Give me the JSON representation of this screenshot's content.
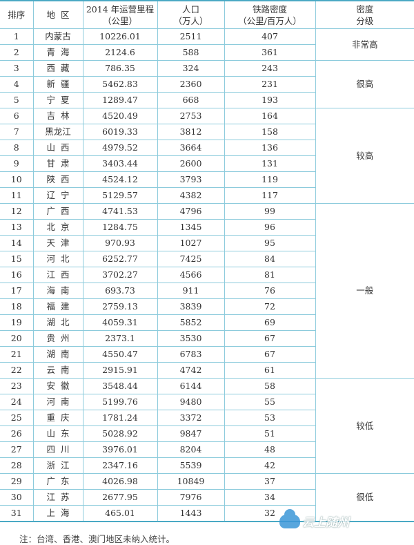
{
  "headers": {
    "rank": "排序",
    "region": "地  区",
    "mileage": [
      "2014 年运营里程",
      "（公里）"
    ],
    "population": [
      "人口",
      "（万人）"
    ],
    "density": [
      "铁路密度",
      "（公里/百万人）"
    ],
    "grade": [
      "密度",
      "分级"
    ]
  },
  "rows": [
    {
      "rank": "1",
      "region": "内蒙古",
      "mileage": "10226.01",
      "population": "2511",
      "density": "407"
    },
    {
      "rank": "2",
      "region": "青  海",
      "mileage": "2124.6",
      "population": "588",
      "density": "361"
    },
    {
      "rank": "3",
      "region": "西  藏",
      "mileage": "786.35",
      "population": "324",
      "density": "243"
    },
    {
      "rank": "4",
      "region": "新  疆",
      "mileage": "5462.83",
      "population": "2360",
      "density": "231"
    },
    {
      "rank": "5",
      "region": "宁  夏",
      "mileage": "1289.47",
      "population": "668",
      "density": "193"
    },
    {
      "rank": "6",
      "region": "吉  林",
      "mileage": "4520.49",
      "population": "2753",
      "density": "164"
    },
    {
      "rank": "7",
      "region": "黑龙江",
      "mileage": "6019.33",
      "population": "3812",
      "density": "158"
    },
    {
      "rank": "8",
      "region": "山  西",
      "mileage": "4979.52",
      "population": "3664",
      "density": "136"
    },
    {
      "rank": "9",
      "region": "甘  肃",
      "mileage": "3403.44",
      "population": "2600",
      "density": "131"
    },
    {
      "rank": "10",
      "region": "陕  西",
      "mileage": "4524.12",
      "population": "3793",
      "density": "119"
    },
    {
      "rank": "11",
      "region": "辽  宁",
      "mileage": "5129.57",
      "population": "4382",
      "density": "117"
    },
    {
      "rank": "12",
      "region": "广  西",
      "mileage": "4741.53",
      "population": "4796",
      "density": "99"
    },
    {
      "rank": "13",
      "region": "北  京",
      "mileage": "1284.75",
      "population": "1345",
      "density": "96"
    },
    {
      "rank": "14",
      "region": "天  津",
      "mileage": "970.93",
      "population": "1027",
      "density": "95"
    },
    {
      "rank": "15",
      "region": "河  北",
      "mileage": "6252.77",
      "population": "7425",
      "density": "84"
    },
    {
      "rank": "16",
      "region": "江  西",
      "mileage": "3702.27",
      "population": "4566",
      "density": "81"
    },
    {
      "rank": "17",
      "region": "海  南",
      "mileage": "693.73",
      "population": "911",
      "density": "76"
    },
    {
      "rank": "18",
      "region": "福  建",
      "mileage": "2759.13",
      "population": "3839",
      "density": "72"
    },
    {
      "rank": "19",
      "region": "湖  北",
      "mileage": "4059.31",
      "population": "5852",
      "density": "69"
    },
    {
      "rank": "20",
      "region": "贵  州",
      "mileage": "2373.1",
      "population": "3530",
      "density": "67"
    },
    {
      "rank": "21",
      "region": "湖  南",
      "mileage": "4550.47",
      "population": "6783",
      "density": "67"
    },
    {
      "rank": "22",
      "region": "云  南",
      "mileage": "2915.91",
      "population": "4742",
      "density": "61"
    },
    {
      "rank": "23",
      "region": "安  徽",
      "mileage": "3548.44",
      "population": "6144",
      "density": "58"
    },
    {
      "rank": "24",
      "region": "河  南",
      "mileage": "5199.76",
      "population": "9480",
      "density": "55"
    },
    {
      "rank": "25",
      "region": "重  庆",
      "mileage": "1781.24",
      "population": "3372",
      "density": "53"
    },
    {
      "rank": "26",
      "region": "山  东",
      "mileage": "5028.92",
      "population": "9847",
      "density": "51"
    },
    {
      "rank": "27",
      "region": "四  川",
      "mileage": "3976.01",
      "population": "8204",
      "density": "48"
    },
    {
      "rank": "28",
      "region": "浙  江",
      "mileage": "2347.16",
      "population": "5539",
      "density": "42"
    },
    {
      "rank": "29",
      "region": "广  东",
      "mileage": "4026.98",
      "population": "10849",
      "density": "37"
    },
    {
      "rank": "30",
      "region": "江  苏",
      "mileage": "2677.95",
      "population": "7976",
      "density": "34"
    },
    {
      "rank": "31",
      "region": "上  海",
      "mileage": "465.01",
      "population": "1443",
      "density": "32"
    }
  ],
  "grades": [
    {
      "label": "非常高",
      "rows": 2
    },
    {
      "label": "很高",
      "rows": 3
    },
    {
      "label": "较高",
      "rows": 6
    },
    {
      "label": "一般",
      "rows": 11
    },
    {
      "label": "较低",
      "rows": 6
    },
    {
      "label": "很低",
      "rows": 3
    }
  ],
  "note": "注：台湾、香港、澳门地区未纳入统计。",
  "watermark": "云上随州",
  "colors": {
    "rule": "#4aa9c4",
    "grid": "#8ccbdc"
  }
}
